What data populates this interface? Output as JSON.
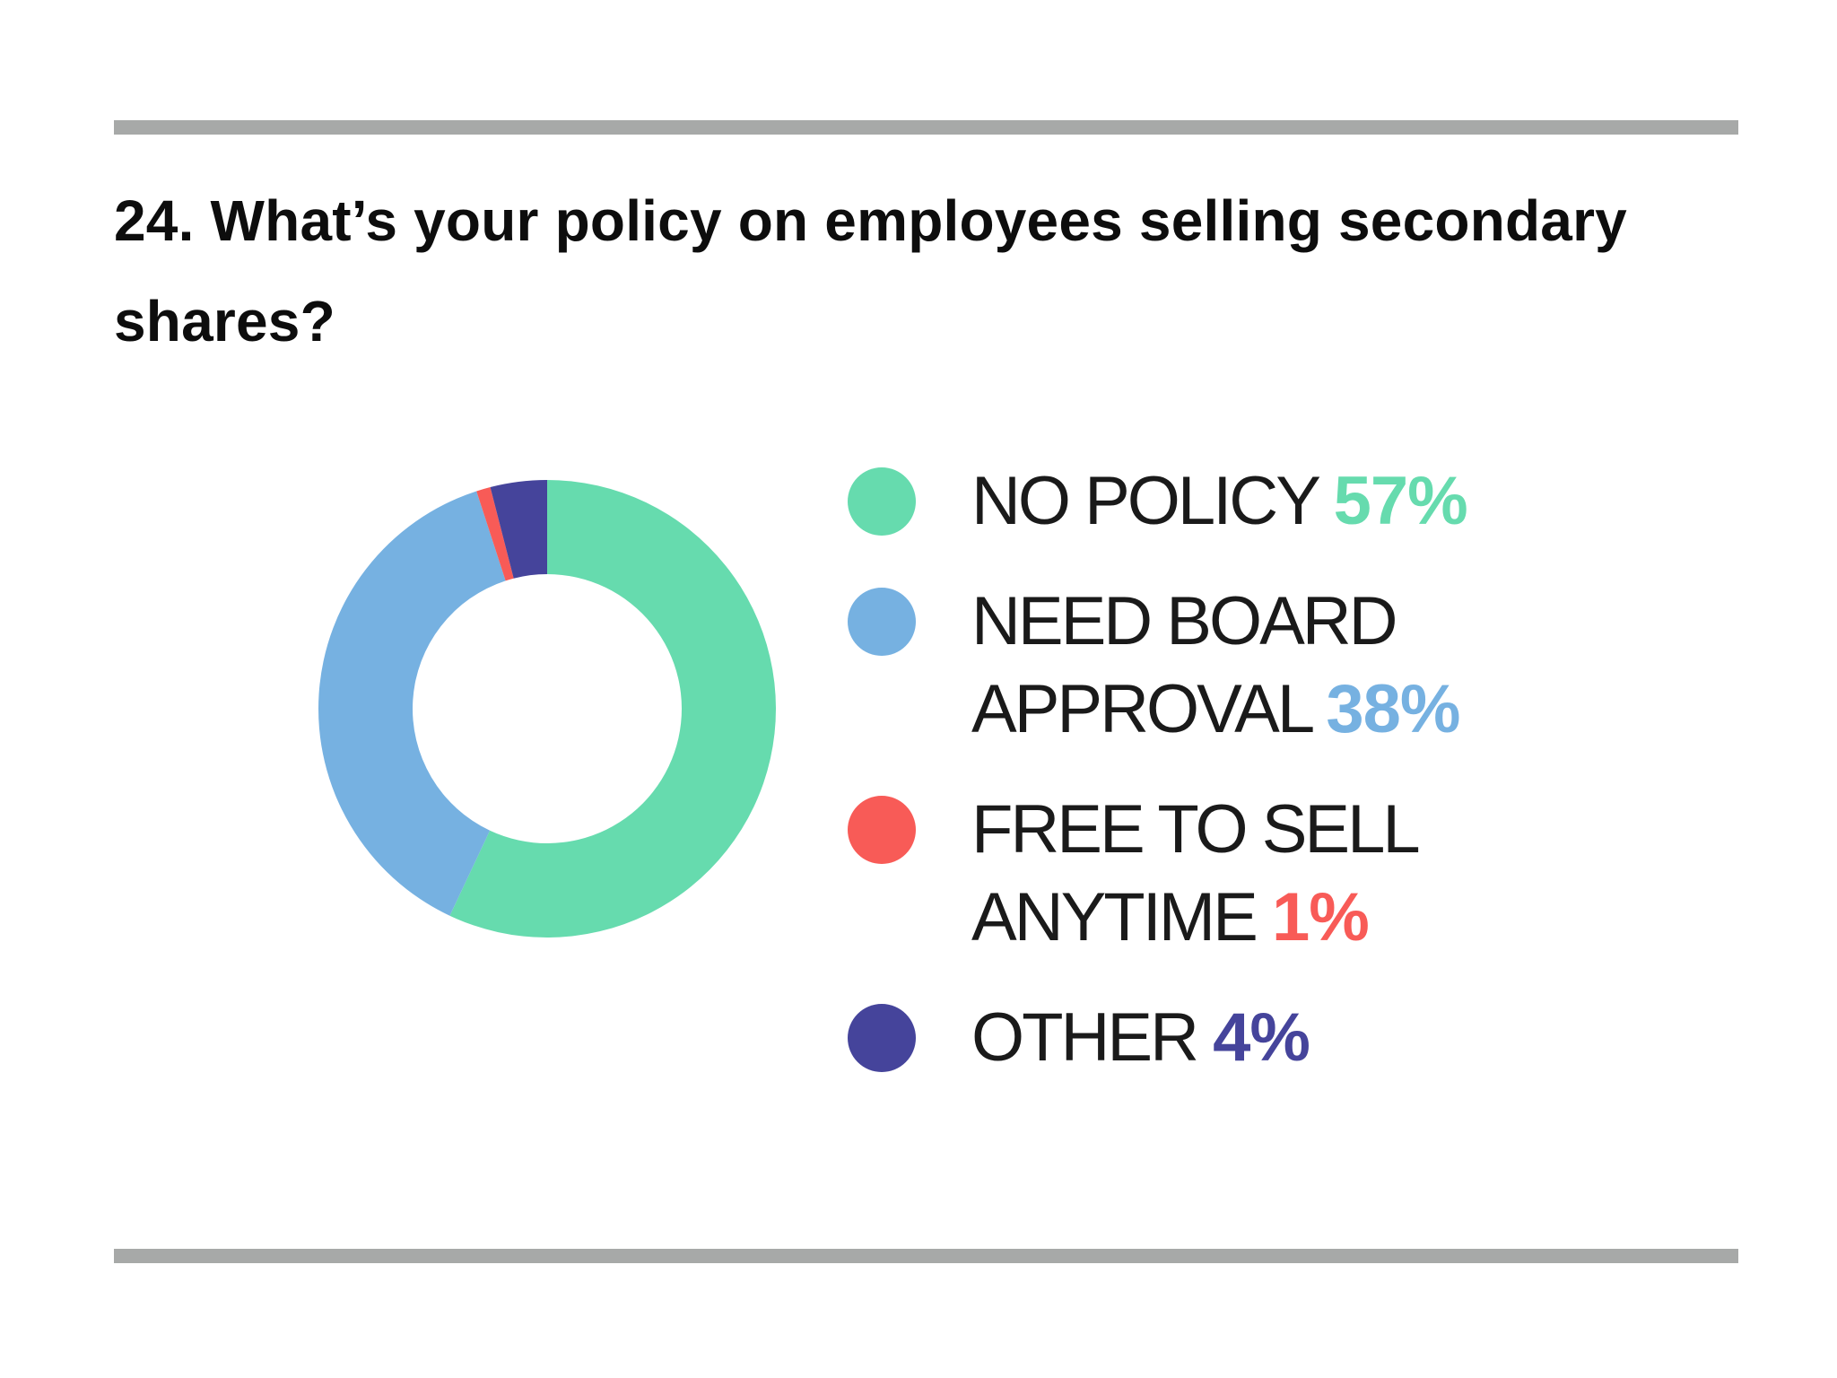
{
  "title": "24. What’s your policy on employees selling secondary shares?",
  "chart_data": {
    "type": "pie",
    "variant": "donut",
    "title": "24. What’s your policy on employees selling secondary shares?",
    "legend_position": "right",
    "start_angle_deg": 0,
    "direction": "clockwise",
    "slices": [
      {
        "label_lines": [
          "NO POLICY"
        ],
        "value": 57,
        "value_text": "57%",
        "color": "#66dbae"
      },
      {
        "label_lines": [
          "NEED BOARD",
          "APPROVAL"
        ],
        "value": 38,
        "value_text": "38%",
        "color": "#76b1e1"
      },
      {
        "label_lines": [
          "FREE TO SELL",
          "ANYTIME"
        ],
        "value": 1,
        "value_text": "1%",
        "color": "#f85b57"
      },
      {
        "label_lines": [
          "OTHER"
        ],
        "value": 4,
        "value_text": "4%",
        "color": "#45449b"
      }
    ]
  }
}
